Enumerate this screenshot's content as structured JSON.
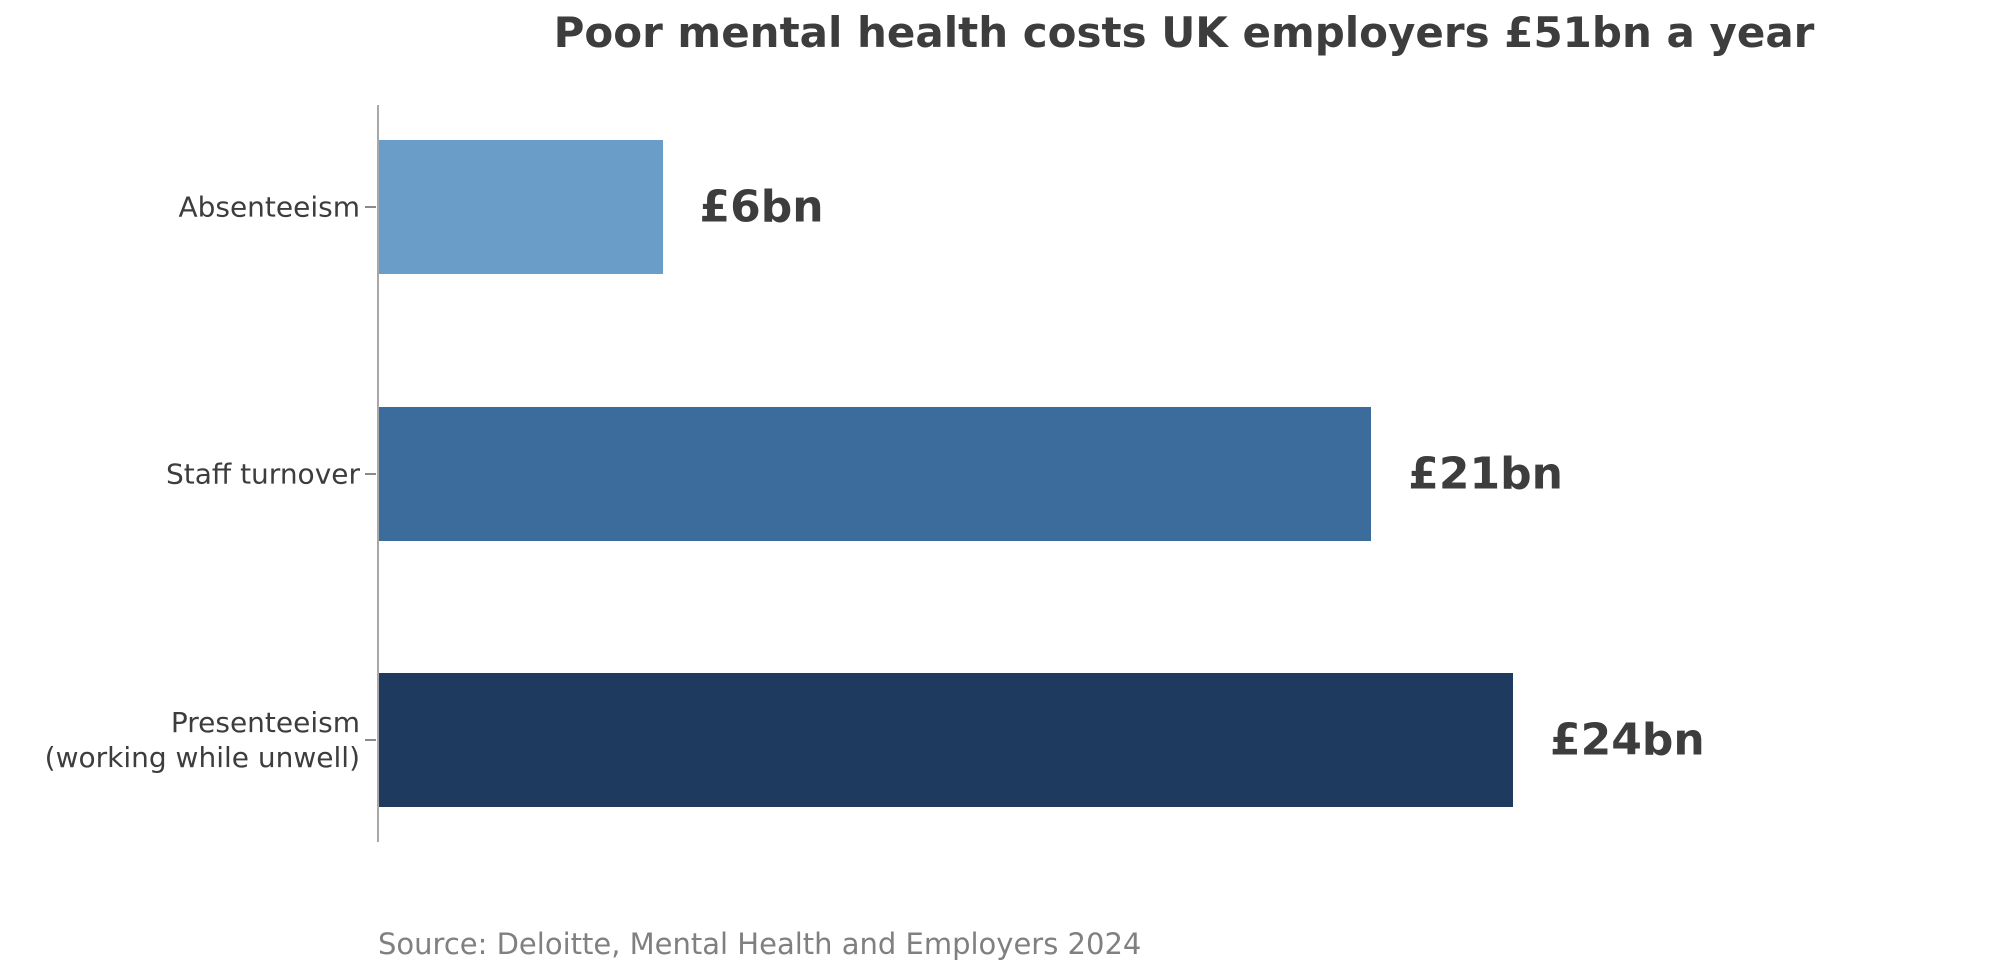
{
  "chart_data": {
    "type": "bar",
    "orientation": "horizontal",
    "title": "Poor mental health costs UK employers £51bn a year",
    "categories": [
      "Absenteeism",
      "Staff turnover",
      "Presenteeism (working while unwell)"
    ],
    "category_lines": [
      [
        "Absenteeism"
      ],
      [
        "Staff turnover"
      ],
      [
        "Presenteeism",
        "(working while unwell)"
      ]
    ],
    "values": [
      6,
      21,
      24
    ],
    "value_labels": [
      "£6bn",
      "£21bn",
      "£24bn"
    ],
    "bar_colors": [
      "#6a9dc7",
      "#3c6c9b",
      "#1e3a5f"
    ],
    "unit": "£bn",
    "xlim": [
      0,
      24
    ],
    "grid": false,
    "legend": false,
    "source": "Source: Deloitte, Mental Health and Employers 2024",
    "text_color": "#3d3d3d",
    "source_color": "#808080",
    "axis_color": "#a8a8a8"
  }
}
